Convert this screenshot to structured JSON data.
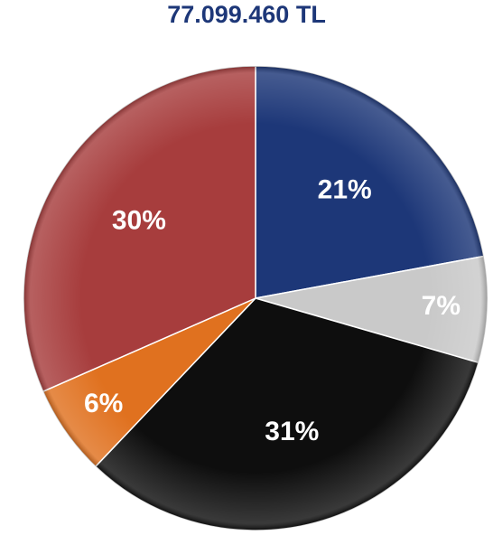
{
  "chart_data": {
    "type": "pie",
    "title": "77.099.460 TL",
    "values": [
      21,
      7,
      31,
      6,
      30
    ],
    "value_labels": [
      "21%",
      "7%",
      "31%",
      "6%",
      "30%"
    ],
    "colors": [
      "#1d3778",
      "#c9c9c9",
      "#0e0e0e",
      "#e0711f",
      "#a73d3d"
    ]
  }
}
